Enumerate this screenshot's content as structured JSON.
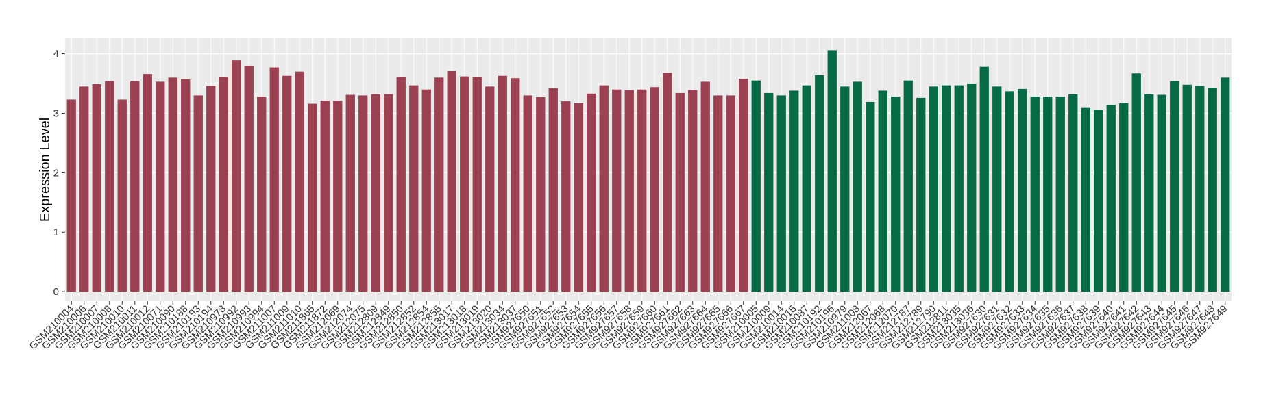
{
  "chart_data": {
    "type": "bar",
    "y_label": "Expression Level",
    "ylim": [
      -0.16,
      4.26
    ],
    "yticks": [
      0,
      1,
      2,
      3,
      4
    ],
    "grid": true,
    "panel_color": "#ebebeb",
    "groups": [
      {
        "color": "#9c4151",
        "categories": [
          "GSM210004",
          "GSM210006",
          "GSM210007",
          "GSM210008",
          "GSM210010",
          "GSM210011",
          "GSM210012",
          "GSM210071",
          "GSM210090",
          "GSM210188",
          "GSM210193",
          "GSM210194",
          "GSM210978",
          "GSM210992",
          "GSM210993",
          "GSM210994",
          "GSM211007",
          "GSM211009",
          "GSM211010",
          "GSM211865",
          "GSM211872",
          "GSM212069",
          "GSM212074",
          "GSM212075",
          "GSM212809",
          "GSM212849",
          "GSM212850",
          "GSM212852",
          "GSM212854",
          "GSM212855",
          "GSM213017",
          "GSM213018",
          "GSM213019",
          "GSM213020",
          "GSM213034",
          "GSM213037",
          "GSM927650",
          "GSM927651",
          "GSM927652",
          "GSM927653",
          "GSM927654",
          "GSM927655",
          "GSM927656",
          "GSM927657",
          "GSM927658",
          "GSM927659",
          "GSM927660",
          "GSM927661",
          "GSM927662",
          "GSM927663",
          "GSM927664",
          "GSM927665",
          "GSM927666",
          "GSM927667"
        ],
        "values": [
          3.23,
          3.45,
          3.49,
          3.54,
          3.23,
          3.54,
          3.66,
          3.53,
          3.6,
          3.57,
          3.3,
          3.46,
          3.61,
          3.89,
          3.8,
          3.28,
          3.77,
          3.63,
          3.7,
          3.16,
          3.21,
          3.21,
          3.31,
          3.3,
          3.32,
          3.32,
          3.61,
          3.47,
          3.4,
          3.6,
          3.71,
          3.62,
          3.61,
          3.45,
          3.63,
          3.59,
          3.3,
          3.27,
          3.42,
          3.2,
          3.17,
          3.33,
          3.47,
          3.4,
          3.39,
          3.4,
          3.44,
          3.68,
          3.34,
          3.39,
          3.53,
          3.3,
          3.3,
          3.58
        ]
      },
      {
        "color": "#066a45",
        "categories": [
          "GSM210005",
          "GSM210009",
          "GSM210014",
          "GSM210015",
          "GSM210087",
          "GSM210192",
          "GSM210196",
          "GSM210979",
          "GSM211008",
          "GSM212067",
          "GSM212068",
          "GSM212070",
          "GSM212787",
          "GSM212789",
          "GSM212790",
          "GSM212811",
          "GSM213035",
          "GSM213036",
          "GSM927630",
          "GSM927631",
          "GSM927632",
          "GSM927633",
          "GSM927634",
          "GSM927635",
          "GSM927636",
          "GSM927637",
          "GSM927638",
          "GSM927639",
          "GSM927640",
          "GSM927641",
          "GSM927642",
          "GSM927643",
          "GSM927644",
          "GSM927645",
          "GSM927646",
          "GSM927647",
          "GSM927648",
          "GSM927649"
        ],
        "values": [
          3.55,
          3.34,
          3.3,
          3.38,
          3.47,
          3.64,
          4.06,
          3.45,
          3.53,
          3.19,
          3.38,
          3.28,
          3.55,
          3.26,
          3.45,
          3.47,
          3.47,
          3.5,
          3.78,
          3.45,
          3.37,
          3.41,
          3.28,
          3.28,
          3.28,
          3.32,
          3.09,
          3.06,
          3.14,
          3.17,
          3.67,
          3.32,
          3.31,
          3.54,
          3.48,
          3.46,
          3.43,
          3.6
        ]
      }
    ]
  }
}
